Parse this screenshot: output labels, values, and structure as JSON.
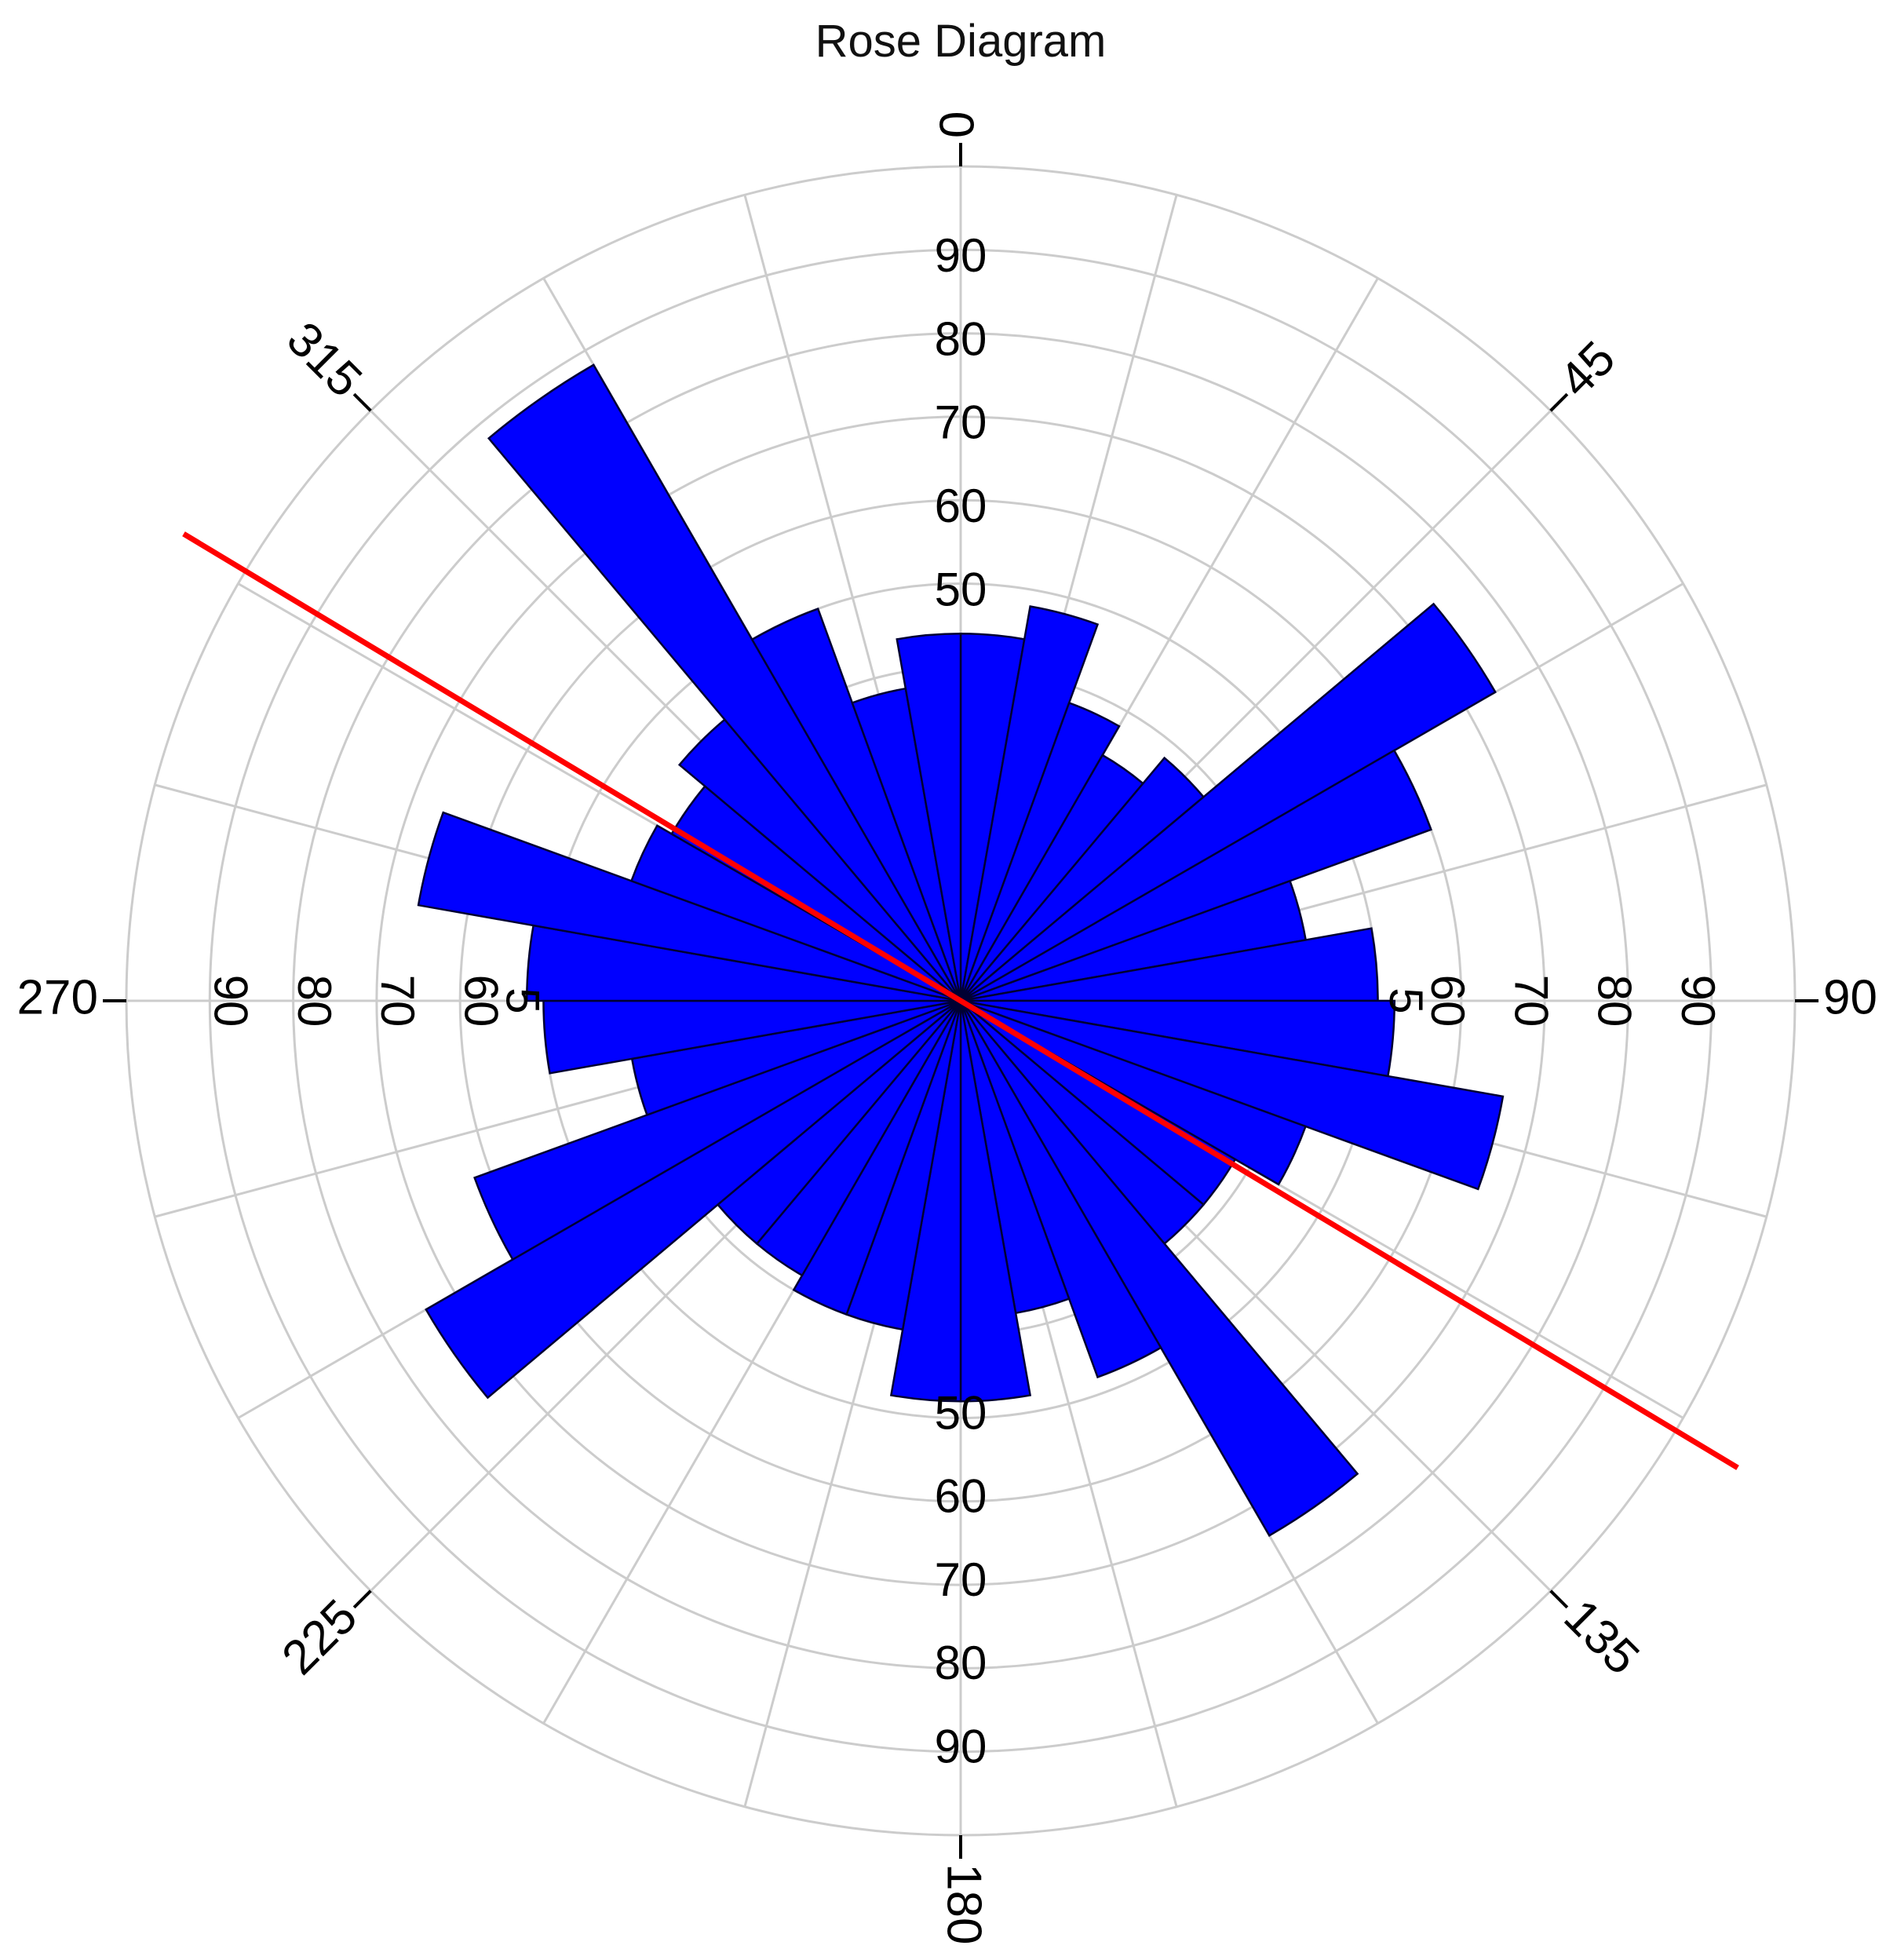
{
  "chart_data": {
    "type": "rose",
    "title": "Rose Diagram",
    "bin_width_deg": 10,
    "bins_start_deg": [
      0,
      10,
      20,
      30,
      40,
      50,
      60,
      70,
      80,
      90,
      100,
      110,
      120,
      130,
      140,
      150,
      160,
      170,
      180,
      190,
      200,
      210,
      220,
      230,
      240,
      250,
      260,
      270,
      280,
      290,
      300,
      310,
      320,
      330,
      340,
      350
    ],
    "values": [
      44,
      48,
      38,
      34,
      38,
      74,
      60,
      42,
      50,
      52,
      66,
      44,
      38,
      38,
      74,
      48,
      38,
      48,
      48,
      40,
      40,
      38,
      38,
      74,
      62,
      40,
      50,
      52,
      66,
      42,
      40,
      44,
      88,
      50,
      38,
      44
    ],
    "radial_ticks_top": [
      "90",
      "80",
      "70",
      "60",
      "50"
    ],
    "radial_ticks_bottom": [
      "50",
      "60",
      "70",
      "80",
      "90"
    ],
    "radial_ticks_right": [
      "5",
      "60",
      "70",
      "80",
      "90"
    ],
    "radial_ticks_left": [
      "90",
      "80",
      "70",
      "60",
      "5"
    ],
    "angle_labels": [
      {
        "deg": 0,
        "label": "0"
      },
      {
        "deg": 45,
        "label": "45"
      },
      {
        "deg": 90,
        "label": "90"
      },
      {
        "deg": 135,
        "label": "135"
      },
      {
        "deg": 180,
        "label": "180"
      },
      {
        "deg": 225,
        "label": "225"
      },
      {
        "deg": 270,
        "label": "270"
      },
      {
        "deg": 315,
        "label": "315"
      }
    ],
    "trend_line_deg": 121,
    "grid": true,
    "colors": {
      "bars": "#0000ff",
      "bar_edge": "#000033",
      "trend_line": "#ff0000",
      "grid": "#cccccc"
    }
  }
}
